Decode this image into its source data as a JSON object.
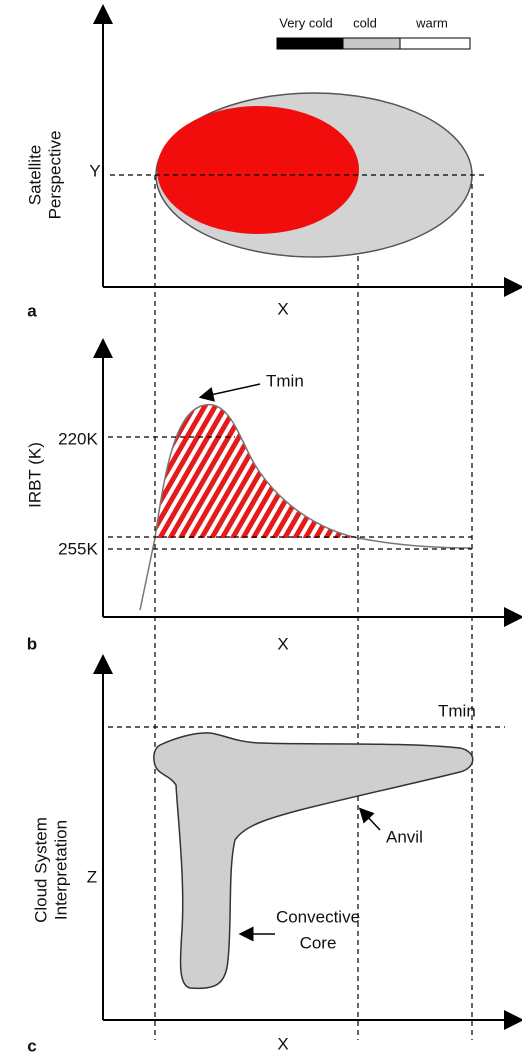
{
  "legend": {
    "labels": [
      "Very cold",
      "cold",
      "warm"
    ]
  },
  "panels": [
    {
      "letter": "a",
      "y_label": [
        "Satellite",
        "Perspective"
      ],
      "y_axis_mark": "Y",
      "x_label": "X"
    },
    {
      "letter": "b",
      "y_label": [
        "IRBT (K)"
      ],
      "y_ticks": [
        "220K",
        "255K"
      ],
      "annotation": "Tmin",
      "x_label": "X"
    },
    {
      "letter": "c",
      "y_label": [
        "Cloud System",
        "Interpretation"
      ],
      "y_axis_mark": "Z",
      "annotation": "Tmin",
      "anvil": "Anvil",
      "core": [
        "Convective",
        "Core"
      ],
      "x_label": "X"
    }
  ]
}
